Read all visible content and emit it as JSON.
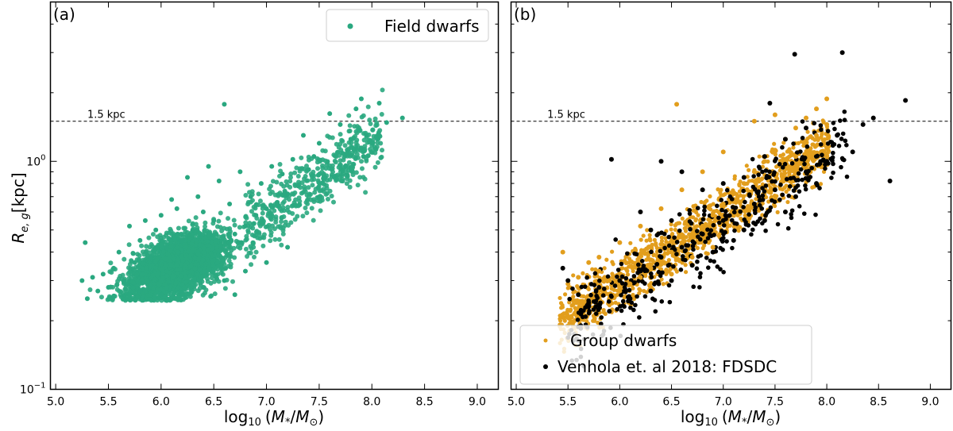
{
  "chart_data": [
    {
      "panel_label": "(a)",
      "type": "scatter",
      "xlabel": "log10 (M*/M⊙)",
      "xlabel_parts": {
        "pre": "log",
        "sub": "10",
        "mid": "(",
        "m": "M",
        "star": "*",
        "slash": "/",
        "m2": "M",
        "sun": "⊙",
        "close": ")"
      },
      "ylabel": "R_e,g [kpc]",
      "ylabel_parts": {
        "r": "R",
        "sub": "e, g",
        "unit": "[kpc]"
      },
      "xlim": [
        4.95,
        9.2
      ],
      "ylim": [
        0.1,
        5.0
      ],
      "yscale": "log",
      "xticks": [
        "5.0",
        "5.5",
        "6.0",
        "6.5",
        "7.0",
        "7.5",
        "8.0",
        "8.5",
        "9.0"
      ],
      "xtick_values": [
        5.0,
        5.5,
        6.0,
        6.5,
        7.0,
        7.5,
        8.0,
        8.5,
        9.0
      ],
      "yticks": [
        {
          "value": 1.0,
          "base": "10",
          "exp": "0"
        },
        {
          "value": 0.1,
          "base": "10",
          "exp": "−1"
        }
      ],
      "hline": {
        "y": 1.5,
        "label": "1.5 kpc"
      },
      "legend": {
        "placement": "top-right",
        "entries": [
          {
            "label": "Field dwarfs",
            "color": "#2aa880"
          }
        ]
      },
      "series": [
        {
          "name": "Field dwarfs",
          "color": "#2aa880",
          "points": [
            [
              8.29,
              1.55
            ],
            [
              8.14,
              1.48
            ],
            [
              8.07,
              1.8
            ],
            [
              7.95,
              1.3
            ],
            [
              7.9,
              1.88
            ],
            [
              7.85,
              1.7
            ],
            [
              7.92,
              1.05
            ],
            [
              7.8,
              1.25
            ],
            [
              7.75,
              0.95
            ],
            [
              7.7,
              1.45
            ],
            [
              7.6,
              1.62
            ],
            [
              7.55,
              0.85
            ],
            [
              7.5,
              1.2
            ],
            [
              7.45,
              1.05
            ],
            [
              7.4,
              0.92
            ],
            [
              7.35,
              1.3
            ],
            [
              7.3,
              0.78
            ],
            [
              7.25,
              1.02
            ],
            [
              7.2,
              0.72
            ],
            [
              7.15,
              0.88
            ],
            [
              7.1,
              0.66
            ],
            [
              7.05,
              0.95
            ],
            [
              7.0,
              0.62
            ],
            [
              6.95,
              0.8
            ],
            [
              6.9,
              0.58
            ],
            [
              6.6,
              1.78
            ],
            [
              6.85,
              0.7
            ],
            [
              6.8,
              0.52
            ],
            [
              6.75,
              0.9
            ],
            [
              6.7,
              0.48
            ],
            [
              6.65,
              0.65
            ],
            [
              6.55,
              0.82
            ],
            [
              6.5,
              0.55
            ],
            [
              6.45,
              0.95
            ],
            [
              6.4,
              0.6
            ],
            [
              6.35,
              0.7
            ],
            [
              6.3,
              0.5
            ],
            [
              6.25,
              0.85
            ],
            [
              6.2,
              0.45
            ],
            [
              6.15,
              0.62
            ],
            [
              6.1,
              0.68
            ],
            [
              6.05,
              0.42
            ],
            [
              6.0,
              0.58
            ],
            [
              5.95,
              0.5
            ],
            [
              5.9,
              0.38
            ],
            [
              5.85,
              0.55
            ],
            [
              5.8,
              0.45
            ],
            [
              5.75,
              0.36
            ],
            [
              5.7,
              0.52
            ],
            [
              5.65,
              0.3
            ],
            [
              5.6,
              0.4
            ],
            [
              5.55,
              0.34
            ],
            [
              5.5,
              0.28
            ],
            [
              5.45,
              0.32
            ],
            [
              5.4,
              0.27
            ],
            [
              5.35,
              0.31
            ],
            [
              5.3,
              0.25
            ],
            [
              5.28,
              0.44
            ],
            [
              5.25,
              0.3
            ],
            [
              6.4,
              0.28
            ],
            [
              6.6,
              0.3
            ],
            [
              6.8,
              0.33
            ],
            [
              7.0,
              0.36
            ],
            [
              7.2,
              0.42
            ],
            [
              6.2,
              0.26
            ],
            [
              6.0,
              0.26
            ],
            [
              5.8,
              0.27
            ],
            [
              6.7,
              0.26
            ]
          ]
        }
      ]
    },
    {
      "panel_label": "(b)",
      "type": "scatter",
      "xlabel": "log10 (M*/M⊙)",
      "xlim": [
        4.95,
        9.2
      ],
      "ylim": [
        0.1,
        5.0
      ],
      "yscale": "log",
      "xticks": [
        "5.0",
        "5.5",
        "6.0",
        "6.5",
        "7.0",
        "7.5",
        "8.0",
        "8.5",
        "9.0"
      ],
      "hline": {
        "y": 1.5,
        "label": "1.5 kpc"
      },
      "legend": {
        "placement": "bottom-left",
        "entries": [
          {
            "label": "Group dwarfs",
            "color": "#e29e1d"
          },
          {
            "label": "Venhola et. al 2018: FDSDC",
            "color": "#000000"
          }
        ]
      },
      "series": [
        {
          "name": "Group dwarfs",
          "color": "#e29e1d",
          "points": [
            [
              8.0,
              1.88
            ],
            [
              7.9,
              1.7
            ],
            [
              7.8,
              1.55
            ],
            [
              7.7,
              1.4
            ],
            [
              7.6,
              1.25
            ],
            [
              7.5,
              1.12
            ],
            [
              7.4,
              1.0
            ],
            [
              7.3,
              0.9
            ],
            [
              7.2,
              0.8
            ],
            [
              7.1,
              0.72
            ],
            [
              7.0,
              0.65
            ],
            [
              6.9,
              0.58
            ],
            [
              6.8,
              0.52
            ],
            [
              6.7,
              0.48
            ],
            [
              6.6,
              0.44
            ],
            [
              6.5,
              0.4
            ],
            [
              6.4,
              0.37
            ],
            [
              6.3,
              0.34
            ],
            [
              6.2,
              0.31
            ],
            [
              6.1,
              0.29
            ],
            [
              6.0,
              0.27
            ],
            [
              5.9,
              0.3
            ],
            [
              5.8,
              0.33
            ],
            [
              5.7,
              0.36
            ],
            [
              5.6,
              0.31
            ],
            [
              5.5,
              0.29
            ],
            [
              5.45,
              0.4
            ],
            [
              6.55,
              1.78
            ],
            [
              7.3,
              1.5
            ],
            [
              7.5,
              1.6
            ],
            [
              7.0,
              1.1
            ],
            [
              6.8,
              0.9
            ],
            [
              6.6,
              0.75
            ],
            [
              6.4,
              0.62
            ],
            [
              6.2,
              0.52
            ],
            [
              6.0,
              0.44
            ],
            [
              5.8,
              0.38
            ],
            [
              7.7,
              1.05
            ],
            [
              7.9,
              1.3
            ],
            [
              8.0,
              1.45
            ],
            [
              6.9,
              0.42
            ],
            [
              6.7,
              0.38
            ],
            [
              6.5,
              0.32
            ],
            [
              6.3,
              0.28
            ]
          ]
        },
        {
          "name": "Venhola et. al 2018: FDSDC",
          "color": "#000000",
          "points": [
            [
              8.15,
              3.0
            ],
            [
              7.69,
              2.95
            ],
            [
              8.76,
              1.85
            ],
            [
              8.45,
              1.55
            ],
            [
              8.35,
              1.45
            ],
            [
              8.61,
              0.82
            ],
            [
              8.25,
              1.1
            ],
            [
              8.1,
              1.3
            ],
            [
              8.0,
              1.0
            ],
            [
              7.9,
              0.8
            ],
            [
              7.8,
              0.9
            ],
            [
              7.7,
              0.7
            ],
            [
              7.6,
              0.6
            ],
            [
              7.5,
              0.75
            ],
            [
              7.4,
              0.55
            ],
            [
              7.3,
              0.65
            ],
            [
              7.2,
              0.5
            ],
            [
              7.1,
              0.45
            ],
            [
              7.0,
              0.55
            ],
            [
              6.9,
              0.4
            ],
            [
              6.8,
              0.48
            ],
            [
              6.7,
              0.35
            ],
            [
              6.6,
              0.42
            ],
            [
              6.5,
              0.3
            ],
            [
              6.4,
              0.38
            ],
            [
              6.3,
              0.27
            ],
            [
              6.2,
              0.33
            ],
            [
              6.1,
              0.25
            ],
            [
              6.0,
              0.3
            ],
            [
              5.9,
              0.22
            ],
            [
              5.8,
              0.28
            ],
            [
              5.7,
              0.24
            ],
            [
              5.6,
              0.26
            ],
            [
              5.5,
              0.3
            ],
            [
              5.45,
              0.34
            ],
            [
              5.92,
              1.02
            ],
            [
              6.4,
              1.0
            ],
            [
              6.6,
              0.9
            ],
            [
              6.8,
              0.75
            ],
            [
              7.0,
              0.8
            ],
            [
              7.2,
              0.85
            ],
            [
              7.4,
              1.05
            ],
            [
              7.6,
              1.25
            ],
            [
              7.8,
              1.4
            ],
            [
              6.3,
              0.5
            ],
            [
              6.5,
              0.55
            ],
            [
              6.2,
              0.6
            ],
            [
              7.45,
              1.8
            ]
          ]
        }
      ]
    }
  ]
}
